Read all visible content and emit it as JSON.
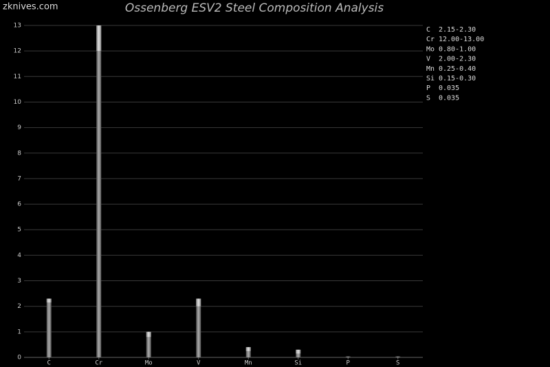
{
  "watermark": "zknives.com",
  "chart_data": {
    "type": "range_bar",
    "title": "Ossenberg ESV2 Steel Composition Analysis",
    "categories": [
      "C",
      "Cr",
      "Mo",
      "V",
      "Mn",
      "Si",
      "P",
      "S"
    ],
    "low": [
      2.15,
      12,
      0.8,
      2,
      0.25,
      0.15,
      null,
      null
    ],
    "high": [
      2.3,
      13,
      1,
      2.3,
      0.4,
      0.3,
      0.035,
      0.035
    ],
    "legend_labels": [
      "2.15-2.30",
      "12.00-13.00",
      "0.80-1.00",
      "2.00-2.30",
      "0.25-0.40",
      "0.15-0.30",
      "0.035",
      "0.035"
    ],
    "color": "#8a8a8a",
    "range_color": "#c4c4c4",
    "ylim": [
      0,
      13
    ],
    "yticks": [
      0,
      1,
      2,
      3,
      4,
      5,
      6,
      7,
      8,
      9,
      10,
      11,
      12,
      13
    ],
    "grid": true
  }
}
